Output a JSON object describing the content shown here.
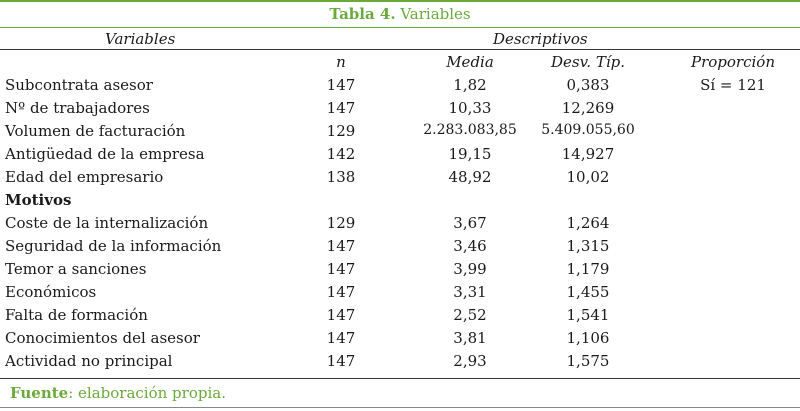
{
  "table": {
    "caption_bold": "Tabla 4.",
    "caption_rest": " Variables",
    "header_variables": "Variables",
    "header_descriptivos": "Descriptivos",
    "col_n": "n",
    "col_media": "Media",
    "col_desv": "Desv. Típ.",
    "col_proporcion": "Proporción",
    "proporcion_value": "Sí = 121",
    "rows": [
      {
        "label": "Subcontrata asesor",
        "n": "147",
        "media": "1,82",
        "desv": "0,383"
      },
      {
        "label": "Nº de trabajadores",
        "n": "147",
        "media": "10,33",
        "desv": "12,269"
      },
      {
        "label": "Volumen de facturación",
        "n": "129",
        "media": "2.283.083,85",
        "desv": "5.409.055,60"
      },
      {
        "label": "Antigüedad de la empresa",
        "n": "142",
        "media": "19,15",
        "desv": "14,927"
      },
      {
        "label": "Edad del empresario",
        "n": "138",
        "media": "48,92",
        "desv": "10,02"
      }
    ],
    "section_motivos": "Motivos",
    "motivos_rows": [
      {
        "label": "Coste de la internalización",
        "n": "129",
        "media": "3,67",
        "desv": "1,264"
      },
      {
        "label": "Seguridad de la información",
        "n": "147",
        "media": "3,46",
        "desv": "1,315"
      },
      {
        "label": "Temor a sanciones",
        "n": "147",
        "media": "3,99",
        "desv": "1,179"
      },
      {
        "label": "Económicos",
        "n": "147",
        "media": "3,31",
        "desv": "1,455"
      },
      {
        "label": "Falta de formación",
        "n": "147",
        "media": "2,52",
        "desv": "1,541"
      },
      {
        "label": "Conocimientos del asesor",
        "n": "147",
        "media": "3,81",
        "desv": "1,106"
      },
      {
        "label": "Actividad no principal",
        "n": "147",
        "media": "2,93",
        "desv": "1,575"
      }
    ],
    "source_bold": "Fuente",
    "source_rest": ": elaboración propia."
  },
  "colors": {
    "accent_green": "#6aaa3c",
    "text": "#1a1a1a"
  }
}
